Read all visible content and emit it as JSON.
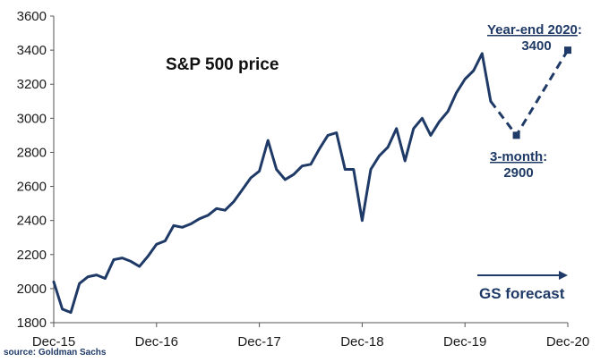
{
  "chart_data": {
    "type": "line",
    "title": "S&P 500 price",
    "xlabel": "",
    "ylabel": "",
    "ylim": [
      1800,
      3600
    ],
    "yticks": [
      1800,
      2000,
      2200,
      2400,
      2600,
      2800,
      3000,
      3200,
      3400,
      3600
    ],
    "xlim": [
      "2015-12",
      "2020-12"
    ],
    "xticks": [
      "Dec-15",
      "Dec-16",
      "Dec-17",
      "Dec-18",
      "Dec-19",
      "Dec-20"
    ],
    "grid": false,
    "series": [
      {
        "style": "solid",
        "color": "#1f3a66",
        "x": [
          "2015-12",
          "2016-01",
          "2016-02",
          "2016-03",
          "2016-04",
          "2016-05",
          "2016-06",
          "2016-07",
          "2016-08",
          "2016-09",
          "2016-10",
          "2016-11",
          "2016-12",
          "2017-01",
          "2017-02",
          "2017-03",
          "2017-04",
          "2017-05",
          "2017-06",
          "2017-07",
          "2017-08",
          "2017-09",
          "2017-10",
          "2017-11",
          "2017-12",
          "2018-01",
          "2018-02",
          "2018-03",
          "2018-04",
          "2018-05",
          "2018-06",
          "2018-07",
          "2018-08",
          "2018-09",
          "2018-10",
          "2018-11",
          "2018-12",
          "2019-01",
          "2019-02",
          "2019-03",
          "2019-04",
          "2019-05",
          "2019-06",
          "2019-07",
          "2019-08",
          "2019-09",
          "2019-10",
          "2019-11",
          "2019-12",
          "2020-01",
          "2020-02",
          "2020-03"
        ],
        "values": [
          2040,
          1880,
          1860,
          2030,
          2070,
          2080,
          2060,
          2170,
          2180,
          2160,
          2130,
          2190,
          2260,
          2280,
          2370,
          2360,
          2380,
          2410,
          2430,
          2470,
          2460,
          2510,
          2580,
          2650,
          2690,
          2870,
          2700,
          2640,
          2670,
          2720,
          2730,
          2820,
          2900,
          2915,
          2700,
          2700,
          2400,
          2700,
          2780,
          2830,
          2940,
          2750,
          2940,
          3000,
          2900,
          2980,
          3040,
          3150,
          3230,
          3280,
          3380,
          3100
        ]
      },
      {
        "style": "dashed",
        "name": "GS forecast",
        "color": "#1f3a66",
        "x": [
          "2020-03",
          "2020-06",
          "2020-12"
        ],
        "values": [
          3100,
          2900,
          3400
        ]
      }
    ],
    "annotations": [
      {
        "id": "year_end",
        "label": "Year-end 2020",
        "suffix": ":",
        "value": "3400"
      },
      {
        "id": "three_month",
        "label": "3-month",
        "suffix": ":",
        "value": "2900"
      }
    ],
    "forecast_label": "GS forecast",
    "source": "source: Goldman Sachs"
  }
}
